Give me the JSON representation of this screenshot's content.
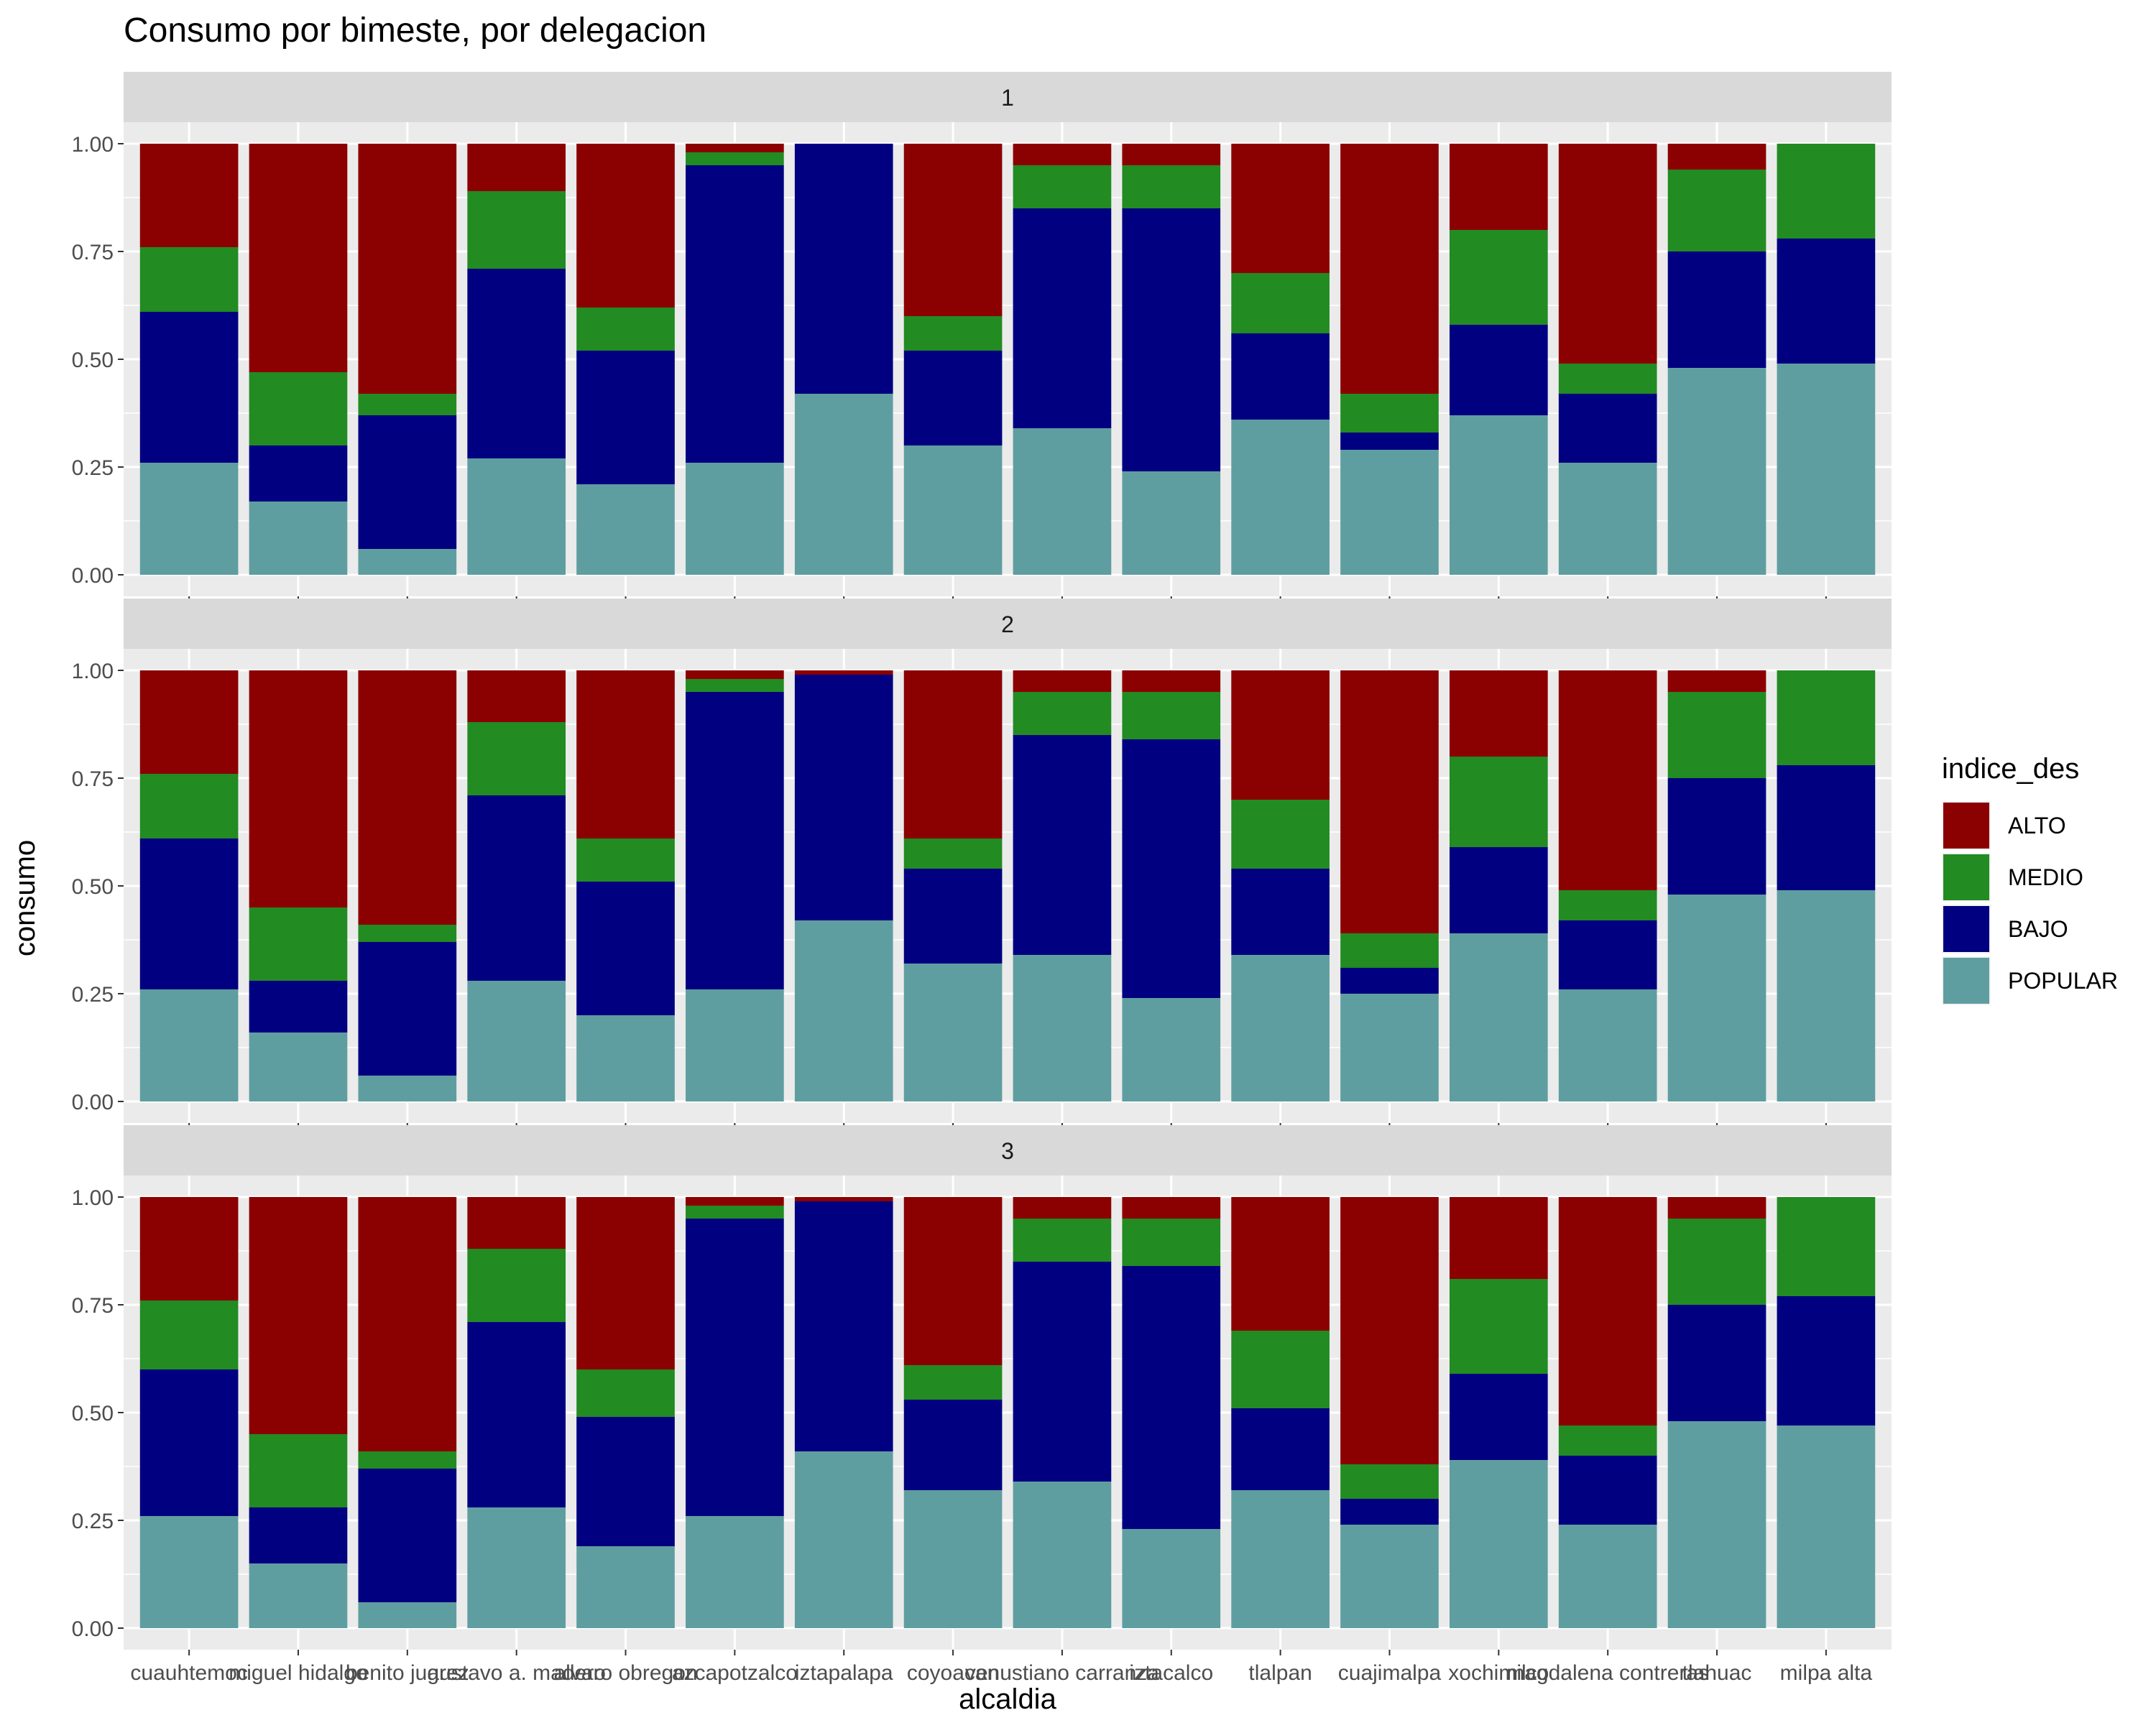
{
  "chart_data": {
    "type": "bar",
    "stacked": true,
    "title": "Consumo por bimeste, por delegacion",
    "xlabel": "alcaldia",
    "ylabel": "consumo",
    "ylim": [
      0,
      1
    ],
    "yticks": [
      "0.00",
      "0.25",
      "0.50",
      "0.75",
      "1.00"
    ],
    "grid": true,
    "legend": {
      "title": "indice_des",
      "position": "right",
      "entries": [
        {
          "name": "ALTO",
          "color": "#8B0000"
        },
        {
          "name": "MEDIO",
          "color": "#228B22"
        },
        {
          "name": "BAJO",
          "color": "#000080"
        },
        {
          "name": "POPULAR",
          "color": "#5F9EA0"
        }
      ]
    },
    "categories": [
      "cuauhtemoc",
      "miguel hidalgo",
      "benito juarez",
      "gustavo a. madero",
      "alvaro obregon",
      "azcapotzalco",
      "iztapalapa",
      "coyoacan",
      "venustiano carranza",
      "iztacalco",
      "tlalpan",
      "cuajimalpa",
      "xochimilco",
      "magdalena contreras",
      "tlahuac",
      "milpa alta"
    ],
    "stack_order_bottom_to_top": [
      "POPULAR",
      "BAJO",
      "MEDIO",
      "ALTO"
    ],
    "facets": [
      {
        "label": "1",
        "series": [
          {
            "name": "POPULAR",
            "values": [
              0.26,
              0.17,
              0.06,
              0.27,
              0.21,
              0.26,
              0.42,
              0.3,
              0.34,
              0.24,
              0.36,
              0.29,
              0.37,
              0.26,
              0.48,
              0.49
            ]
          },
          {
            "name": "BAJO",
            "values": [
              0.35,
              0.13,
              0.31,
              0.44,
              0.31,
              0.69,
              0.58,
              0.22,
              0.51,
              0.61,
              0.2,
              0.04,
              0.21,
              0.16,
              0.27,
              0.29
            ]
          },
          {
            "name": "MEDIO",
            "values": [
              0.15,
              0.17,
              0.05,
              0.18,
              0.1,
              0.03,
              0.0,
              0.08,
              0.1,
              0.1,
              0.14,
              0.09,
              0.22,
              0.07,
              0.19,
              0.22
            ]
          },
          {
            "name": "ALTO",
            "values": [
              0.24,
              0.53,
              0.58,
              0.11,
              0.38,
              0.02,
              0.0,
              0.4,
              0.05,
              0.05,
              0.3,
              0.58,
              0.2,
              0.51,
              0.06,
              0.0
            ]
          }
        ]
      },
      {
        "label": "2",
        "series": [
          {
            "name": "POPULAR",
            "values": [
              0.26,
              0.16,
              0.06,
              0.28,
              0.2,
              0.26,
              0.42,
              0.32,
              0.34,
              0.24,
              0.34,
              0.25,
              0.39,
              0.26,
              0.48,
              0.49
            ]
          },
          {
            "name": "BAJO",
            "values": [
              0.35,
              0.12,
              0.31,
              0.43,
              0.31,
              0.69,
              0.57,
              0.22,
              0.51,
              0.6,
              0.2,
              0.06,
              0.2,
              0.16,
              0.27,
              0.29
            ]
          },
          {
            "name": "MEDIO",
            "values": [
              0.15,
              0.17,
              0.04,
              0.17,
              0.1,
              0.03,
              0.0,
              0.07,
              0.1,
              0.11,
              0.16,
              0.08,
              0.21,
              0.07,
              0.2,
              0.22
            ]
          },
          {
            "name": "ALTO",
            "values": [
              0.24,
              0.55,
              0.59,
              0.12,
              0.39,
              0.02,
              0.01,
              0.39,
              0.05,
              0.05,
              0.3,
              0.61,
              0.2,
              0.51,
              0.05,
              0.0
            ]
          }
        ]
      },
      {
        "label": "3",
        "series": [
          {
            "name": "POPULAR",
            "values": [
              0.26,
              0.15,
              0.06,
              0.28,
              0.19,
              0.26,
              0.41,
              0.32,
              0.34,
              0.23,
              0.32,
              0.24,
              0.39,
              0.24,
              0.48,
              0.47
            ]
          },
          {
            "name": "BAJO",
            "values": [
              0.34,
              0.13,
              0.31,
              0.43,
              0.3,
              0.69,
              0.58,
              0.21,
              0.51,
              0.61,
              0.19,
              0.06,
              0.2,
              0.16,
              0.27,
              0.3
            ]
          },
          {
            "name": "MEDIO",
            "values": [
              0.16,
              0.17,
              0.04,
              0.17,
              0.11,
              0.03,
              0.0,
              0.08,
              0.1,
              0.11,
              0.18,
              0.08,
              0.22,
              0.07,
              0.2,
              0.23
            ]
          },
          {
            "name": "ALTO",
            "values": [
              0.24,
              0.55,
              0.59,
              0.12,
              0.4,
              0.02,
              0.01,
              0.39,
              0.05,
              0.05,
              0.31,
              0.62,
              0.19,
              0.53,
              0.05,
              0.0
            ]
          }
        ]
      }
    ]
  }
}
